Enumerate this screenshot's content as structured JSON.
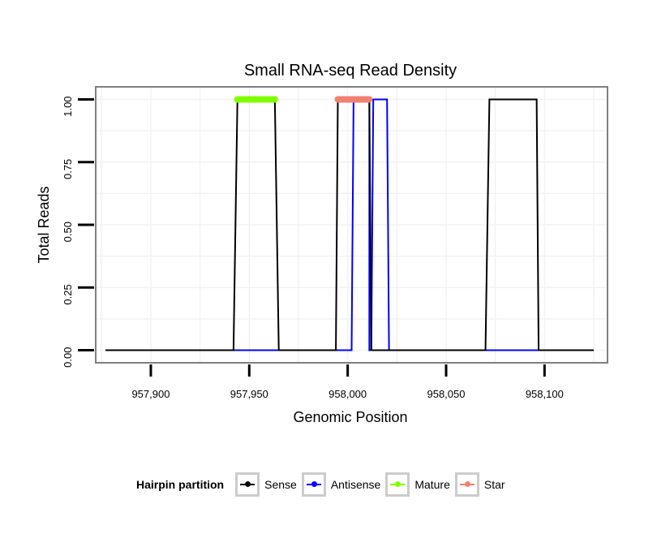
{
  "chart_data": {
    "type": "line",
    "title": "Small RNA-seq Read Density",
    "xlabel": "Genomic Position",
    "ylabel": "Total Reads",
    "xlim": [
      957872,
      958132
    ],
    "ylim": [
      -0.05,
      1.05
    ],
    "x_ticks": [
      957900,
      957950,
      958000,
      958050,
      958100
    ],
    "x_tick_labels": [
      "957,900",
      "957,950",
      "958,000",
      "958,050",
      "958,100"
    ],
    "y_ticks": [
      0,
      0.25,
      0.5,
      0.75,
      1.0
    ],
    "y_tick_labels": [
      "0.00",
      "0.25",
      "0.50",
      "0.75",
      "1.00"
    ],
    "series": [
      {
        "name": "Antisense",
        "color": "#0000ff",
        "points": [
          [
            957877,
            0
          ],
          [
            958002,
            0
          ],
          [
            958003,
            1
          ],
          [
            958011,
            1
          ],
          [
            958011,
            0
          ],
          [
            958012,
            0
          ],
          [
            958013,
            1
          ],
          [
            958020,
            1
          ],
          [
            958021,
            0
          ],
          [
            958125,
            0
          ]
        ]
      },
      {
        "name": "Sense",
        "color": "#000000",
        "points": [
          [
            957877,
            0
          ],
          [
            957942,
            0
          ],
          [
            957944,
            1
          ],
          [
            957963,
            1
          ],
          [
            957965,
            0
          ],
          [
            957994,
            0
          ],
          [
            957995,
            1
          ],
          [
            958011,
            1
          ],
          [
            958012,
            0
          ],
          [
            958070,
            0
          ],
          [
            958072,
            1
          ],
          [
            958096,
            1
          ],
          [
            958097,
            0
          ],
          [
            958125,
            0
          ]
        ]
      }
    ],
    "segments": [
      {
        "name": "Mature",
        "color": "#7fff00",
        "x_start": 957944,
        "x_end": 957963,
        "y": 1
      },
      {
        "name": "Star",
        "color": "#f08070",
        "x_start": 957995,
        "x_end": 958011,
        "y": 1
      }
    ],
    "legend": {
      "title": "Hairpin partition",
      "position": "bottom",
      "items": [
        {
          "label": "Sense",
          "color": "#000000"
        },
        {
          "label": "Antisense",
          "color": "#0000ff"
        },
        {
          "label": "Mature",
          "color": "#7fff00"
        },
        {
          "label": "Star",
          "color": "#f08070"
        }
      ]
    }
  }
}
